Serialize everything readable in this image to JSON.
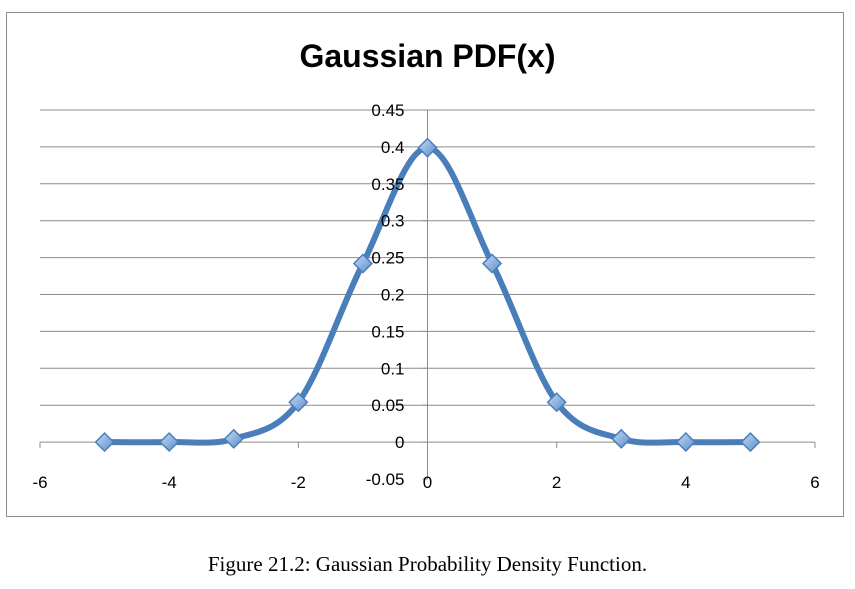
{
  "chart_data": {
    "type": "line",
    "title": "Gaussian PDF(x)",
    "xlabel": "",
    "ylabel": "",
    "xlim": [
      -6,
      6
    ],
    "ylim": [
      -0.05,
      0.45
    ],
    "x_ticks": [
      -6,
      -4,
      -2,
      0,
      2,
      4,
      6
    ],
    "y_ticks": [
      0.45,
      0.4,
      0.35,
      0.3,
      0.25,
      0.2,
      0.15,
      0.1,
      0.05,
      0,
      -0.05
    ],
    "x_tick_labels": [
      "-6",
      "-4",
      "-2",
      "0",
      "2",
      "4",
      "6"
    ],
    "y_tick_labels": [
      "0.45",
      "0.4",
      "0.35",
      "0.3",
      "0.25",
      "0.2",
      "0.15",
      "0.1",
      "0.05",
      "0",
      "-0.05"
    ],
    "grid": true,
    "smooth": true,
    "marker": "diamond",
    "series": [
      {
        "name": "Gaussian PDF(x)",
        "color": "#4a7ebb",
        "marker_color": "#8db3e2",
        "x": [
          -5,
          -4,
          -3,
          -2,
          -1,
          0,
          1,
          2,
          3,
          4,
          5
        ],
        "y": [
          1.5e-06,
          0.000134,
          0.00443,
          0.054,
          0.242,
          0.399,
          0.242,
          0.054,
          0.00443,
          0.000134,
          1.5e-06
        ]
      }
    ]
  },
  "caption": "Figure 21.2: Gaussian Probability Density Function."
}
